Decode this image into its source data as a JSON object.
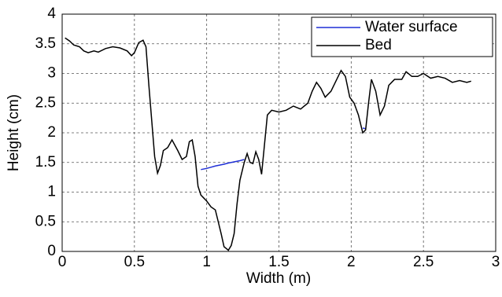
{
  "chart_data": {
    "type": "line",
    "xlabel": "Width (m)",
    "ylabel": "Height (cm)",
    "x": [
      0.02,
      0.05,
      0.08,
      0.12,
      0.15,
      0.18,
      0.22,
      0.25,
      0.3,
      0.35,
      0.4,
      0.45,
      0.48,
      0.5,
      0.53,
      0.56,
      0.58,
      0.6,
      0.62,
      0.64,
      0.66,
      0.68,
      0.7,
      0.73,
      0.76,
      0.8,
      0.83,
      0.86,
      0.88,
      0.9,
      0.92,
      0.94,
      0.96,
      0.98,
      1.0,
      1.03,
      1.06,
      1.08,
      1.1,
      1.12,
      1.15,
      1.17,
      1.19,
      1.21,
      1.23,
      1.26,
      1.28,
      1.3,
      1.32,
      1.34,
      1.36,
      1.38,
      1.4,
      1.42,
      1.45,
      1.5,
      1.55,
      1.6,
      1.65,
      1.7,
      1.73,
      1.76,
      1.79,
      1.82,
      1.86,
      1.9,
      1.93,
      1.96,
      1.99,
      2.02,
      2.05,
      2.08,
      2.1,
      2.12,
      2.14,
      2.17,
      2.2,
      2.23,
      2.26,
      2.3,
      2.35,
      2.38,
      2.42,
      2.46,
      2.5,
      2.55,
      2.6,
      2.65,
      2.7,
      2.75,
      2.8,
      2.83
    ],
    "series": [
      {
        "name": "Water surface",
        "color": "#1f2fd6",
        "values": [
          null,
          null,
          null,
          null,
          null,
          null,
          null,
          null,
          null,
          null,
          null,
          null,
          null,
          null,
          null,
          null,
          null,
          null,
          null,
          null,
          null,
          null,
          null,
          null,
          null,
          null,
          null,
          null,
          null,
          null,
          null,
          null,
          1.38,
          1.39,
          1.4,
          1.42,
          1.44,
          1.45,
          1.46,
          1.47,
          1.49,
          1.5,
          1.51,
          1.52,
          1.53,
          1.55,
          null,
          null,
          null,
          null,
          null,
          null,
          null,
          null,
          null,
          null,
          null,
          null,
          null,
          null,
          null,
          null,
          null,
          null,
          null,
          null,
          null,
          null,
          null,
          null,
          null,
          2.08,
          2.07,
          null,
          null,
          null,
          null,
          null,
          null,
          null,
          null,
          null,
          null,
          null,
          null,
          null,
          null,
          null,
          null,
          null,
          null,
          null
        ]
      },
      {
        "name": "Bed",
        "color": "#000000",
        "values": [
          3.6,
          3.55,
          3.48,
          3.45,
          3.38,
          3.35,
          3.38,
          3.36,
          3.42,
          3.45,
          3.43,
          3.38,
          3.3,
          3.35,
          3.52,
          3.56,
          3.45,
          2.8,
          2.2,
          1.6,
          1.32,
          1.45,
          1.7,
          1.75,
          1.88,
          1.7,
          1.55,
          1.6,
          1.85,
          1.88,
          1.6,
          1.1,
          0.95,
          0.9,
          0.85,
          0.75,
          0.7,
          0.5,
          0.3,
          0.08,
          0.02,
          0.1,
          0.3,
          0.8,
          1.2,
          1.5,
          1.65,
          1.5,
          1.48,
          1.68,
          1.55,
          1.3,
          1.8,
          2.3,
          2.38,
          2.35,
          2.38,
          2.45,
          2.4,
          2.5,
          2.7,
          2.85,
          2.75,
          2.6,
          2.7,
          2.9,
          3.05,
          2.95,
          2.6,
          2.5,
          2.3,
          2.0,
          2.05,
          2.5,
          2.9,
          2.7,
          2.3,
          2.45,
          2.8,
          2.9,
          2.9,
          3.03,
          2.95,
          2.95,
          3.0,
          2.92,
          2.95,
          2.92,
          2.85,
          2.88,
          2.85,
          2.87
        ]
      }
    ],
    "xlim": [
      0,
      3
    ],
    "xticks": [
      0,
      0.5,
      1,
      1.5,
      2,
      2.5,
      3
    ],
    "ylim": [
      0,
      4
    ],
    "yticks": [
      0,
      0.5,
      1,
      1.5,
      2,
      2.5,
      3,
      3.5,
      4
    ],
    "grid": true,
    "legend": "upper right"
  }
}
